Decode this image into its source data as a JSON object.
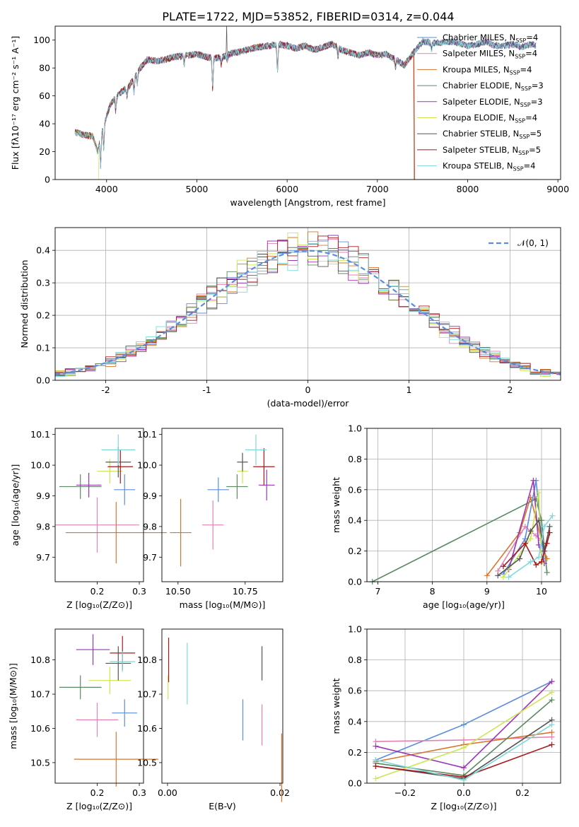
{
  "figure": {
    "title": "PLATE=1722, MJD=53852, FIBERID=0314, z=0.044"
  },
  "colors": {
    "chabrier_miles": "#5b8ddb",
    "salpeter_miles": "#e481b4",
    "kroupa_miles": "#d9752b",
    "chabrier_elodie": "#5a8a62",
    "salpeter_elodie": "#9b35b3",
    "kroupa_elodie": "#cde651",
    "chabrier_stelib": "#555555",
    "salpeter_stelib": "#a8181b",
    "kroupa_stelib": "#7fd8dc",
    "normal": "#5b8ddb",
    "grid": "#b0b0b0"
  },
  "chart_data": [
    {
      "id": "spectrum",
      "type": "line",
      "xlabel": "wavelength [Angstrom, rest frame]",
      "ylabel": "Flux [fλ10⁻¹⁷ erg cm⁻² s⁻¹ A⁻¹]",
      "xlim": [
        3430,
        9030
      ],
      "ylim": [
        0,
        110
      ],
      "xticks": [
        4000,
        5000,
        6000,
        7000,
        8000,
        9000
      ],
      "yticks": [
        0,
        20,
        40,
        60,
        80,
        100
      ],
      "grid": false,
      "legend": "top-right",
      "legend_entries": [
        {
          "base": "Chabrier MILES, N",
          "sub": "SSP",
          "tail": "=4"
        },
        {
          "base": "Salpeter MILES, N",
          "sub": "SSP",
          "tail": "=4"
        },
        {
          "base": "Kroupa MILES, N",
          "sub": "SSP",
          "tail": "=4"
        },
        {
          "base": "Chabrier ELODIE, N",
          "sub": "SSP",
          "tail": "=3"
        },
        {
          "base": "Salpeter ELODIE, N",
          "sub": "SSP",
          "tail": "=3"
        },
        {
          "base": "Kroupa ELODIE, N",
          "sub": "SSP",
          "tail": "=4"
        },
        {
          "base": "Chabrier STELIB, N",
          "sub": "SSP",
          "tail": "=5"
        },
        {
          "base": "Salpeter STELIB, N",
          "sub": "SSP",
          "tail": "=5"
        },
        {
          "base": "Kroupa STELIB, N",
          "sub": "SSP",
          "tail": "=4"
        }
      ],
      "continuum": [
        [
          3650,
          34
        ],
        [
          3750,
          32
        ],
        [
          3850,
          31
        ],
        [
          3900,
          20
        ],
        [
          3930,
          30
        ],
        [
          3980,
          42
        ],
        [
          4050,
          55
        ],
        [
          4150,
          62
        ],
        [
          4250,
          67
        ],
        [
          4350,
          78
        ],
        [
          4450,
          86
        ],
        [
          4550,
          85
        ],
        [
          4650,
          86
        ],
        [
          4750,
          88
        ],
        [
          4900,
          89
        ],
        [
          5000,
          90
        ],
        [
          5100,
          88
        ],
        [
          5200,
          87
        ],
        [
          5300,
          88
        ],
        [
          5400,
          91
        ],
        [
          5500,
          92
        ],
        [
          5600,
          94
        ],
        [
          5700,
          95
        ],
        [
          5800,
          96
        ],
        [
          5900,
          97
        ],
        [
          6000,
          96
        ],
        [
          6100,
          94
        ],
        [
          6200,
          96
        ],
        [
          6300,
          93
        ],
        [
          6400,
          95
        ],
        [
          6500,
          97
        ],
        [
          6600,
          93
        ],
        [
          6700,
          91
        ],
        [
          6800,
          89
        ],
        [
          6900,
          91
        ],
        [
          7000,
          89
        ],
        [
          7100,
          90
        ],
        [
          7200,
          86
        ],
        [
          7300,
          82
        ],
        [
          7400,
          91
        ],
        [
          7500,
          99
        ],
        [
          7600,
          98
        ],
        [
          7700,
          98
        ],
        [
          7800,
          99
        ],
        [
          7900,
          98
        ],
        [
          8000,
          96
        ],
        [
          8100,
          97
        ],
        [
          8200,
          99
        ],
        [
          8300,
          96
        ],
        [
          8400,
          96
        ],
        [
          8500,
          97
        ],
        [
          8600,
          95
        ],
        [
          8700,
          97
        ],
        [
          8760,
          96
        ]
      ],
      "absorption_features": [
        [
          3934,
          22
        ],
        [
          3969,
          18
        ],
        [
          4102,
          10
        ],
        [
          4227,
          6
        ],
        [
          4304,
          10
        ],
        [
          4340,
          8
        ],
        [
          4861,
          6
        ],
        [
          5175,
          22
        ],
        [
          5270,
          5
        ],
        [
          5335,
          4
        ],
        [
          5893,
          20
        ],
        [
          6563,
          7
        ],
        [
          7200,
          6
        ],
        [
          7600,
          5
        ]
      ],
      "model_ends": [
        {
          "series": "kroupa_elodie",
          "end_x": 3910
        },
        {
          "series": "kroupa_elodie",
          "gap_x": 6790
        },
        {
          "series": "kroupa_miles",
          "end_x": 7400
        },
        {
          "series": "salpeter_stelib",
          "end_x": 7410
        }
      ]
    },
    {
      "id": "residuals",
      "type": "histogram",
      "xlabel": "(data-model)/error",
      "ylabel": "Normed distribution",
      "xlim": [
        -2.5,
        2.5
      ],
      "ylim": [
        0,
        0.47
      ],
      "xticks": [
        -2,
        -1,
        0,
        1,
        2
      ],
      "yticks": [
        0.0,
        0.1,
        0.2,
        0.3,
        0.4
      ],
      "grid": true,
      "legend": "top-right",
      "legend_label": "𝒩(0, 1)",
      "bin_width": 0.1,
      "normal": {
        "mean": 0,
        "sigma": 1
      }
    },
    {
      "id": "age_vs_Z",
      "type": "errorbar",
      "xlabel": "Z [log₁₀(Z/Z⊙)]",
      "ylabel": "age  [log₁₀(age/yr)]",
      "xlim": [
        0.1,
        0.31
      ],
      "ylim": [
        9.62,
        10.12
      ],
      "xticks": [
        0.2,
        0.3
      ],
      "yticks": [
        9.7,
        9.8,
        9.9,
        10.0,
        10.1
      ],
      "grid": false,
      "points": [
        {
          "series": "chabrier_miles",
          "x": 0.265,
          "y": 9.92,
          "xerr": 0.025,
          "yerr": 0.05
        },
        {
          "series": "salpeter_miles",
          "x": 0.2,
          "y": 9.805,
          "xerr": 0.1,
          "yerr": 0.09
        },
        {
          "series": "kroupa_miles",
          "x": 0.245,
          "y": 9.78,
          "xerr": 0.12,
          "yerr": 0.1
        },
        {
          "series": "chabrier_elodie",
          "x": 0.16,
          "y": 9.93,
          "xerr": 0.05,
          "yerr": 0.04
        },
        {
          "series": "salpeter_elodie",
          "x": 0.18,
          "y": 9.935,
          "xerr": 0.03,
          "yerr": 0.04
        },
        {
          "series": "kroupa_elodie",
          "x": 0.23,
          "y": 9.98,
          "xerr": 0.03,
          "yerr": 0.04
        },
        {
          "series": "chabrier_stelib",
          "x": 0.25,
          "y": 10.01,
          "xerr": 0.03,
          "yerr": 0.05
        },
        {
          "series": "salpeter_stelib",
          "x": 0.255,
          "y": 9.995,
          "xerr": 0.03,
          "yerr": 0.055
        },
        {
          "series": "kroupa_stelib",
          "x": 0.25,
          "y": 10.05,
          "xerr": 0.04,
          "yerr": 0.05
        }
      ]
    },
    {
      "id": "age_vs_mass",
      "type": "errorbar",
      "xlabel": "mass [log₁₀(M/M⊙)]",
      "ylabel": "",
      "xlim": [
        10.44,
        10.89
      ],
      "ylim": [
        9.62,
        10.12
      ],
      "xticks": [
        10.5,
        10.75
      ],
      "xtick_labels": [
        "10.50",
        "10.75"
      ],
      "yticks": [
        9.7,
        9.8,
        9.9,
        10.0,
        10.1
      ],
      "grid": false,
      "points": [
        {
          "series": "chabrier_miles",
          "x": 10.65,
          "y": 9.92,
          "xerr": 0.04,
          "yerr": 0.04
        },
        {
          "series": "salpeter_miles",
          "x": 10.63,
          "y": 9.805,
          "xerr": 0.04,
          "yerr": 0.08
        },
        {
          "series": "kroupa_miles",
          "x": 10.51,
          "y": 9.78,
          "xerr": 0.04,
          "yerr": 0.11
        },
        {
          "series": "chabrier_elodie",
          "x": 10.72,
          "y": 9.93,
          "xerr": 0.04,
          "yerr": 0.04
        },
        {
          "series": "salpeter_elodie",
          "x": 10.83,
          "y": 9.935,
          "xerr": 0.03,
          "yerr": 0.05
        },
        {
          "series": "kroupa_elodie",
          "x": 10.74,
          "y": 9.98,
          "xerr": 0.02,
          "yerr": 0.04
        },
        {
          "series": "chabrier_stelib",
          "x": 10.74,
          "y": 10.01,
          "xerr": 0.02,
          "yerr": 0.03
        },
        {
          "series": "salpeter_stelib",
          "x": 10.82,
          "y": 9.995,
          "xerr": 0.04,
          "yerr": 0.06
        },
        {
          "series": "kroupa_stelib",
          "x": 10.79,
          "y": 10.05,
          "xerr": 0.04,
          "yerr": 0.05
        }
      ]
    },
    {
      "id": "mass_weight_vs_age",
      "type": "line",
      "xlabel": "age  [log₁₀(age/yr)]",
      "ylabel": "mass weight",
      "xlim": [
        6.8,
        10.35
      ],
      "ylim": [
        0,
        1
      ],
      "xticks": [
        7,
        8,
        9,
        10
      ],
      "yticks": [
        0.0,
        0.2,
        0.4,
        0.6,
        0.8,
        1.0
      ],
      "grid": true,
      "series": [
        {
          "series": "chabrier_elodie",
          "x": [
            6.9,
            9.9,
            10.0,
            10.1
          ],
          "y": [
            0.0,
            0.54,
            0.4,
            0.06
          ]
        },
        {
          "series": "kroupa_miles",
          "x": [
            9.0,
            9.6,
            9.8,
            10.05,
            10.1
          ],
          "y": [
            0.04,
            0.32,
            0.55,
            0.2,
            0.15
          ]
        },
        {
          "series": "salpeter_miles",
          "x": [
            9.2,
            9.7,
            9.9,
            10.0
          ],
          "y": [
            0.07,
            0.36,
            0.3,
            0.27
          ]
        },
        {
          "series": "chabrier_miles",
          "x": [
            9.3,
            9.7,
            9.9,
            10.05
          ],
          "y": [
            0.05,
            0.28,
            0.66,
            0.12
          ]
        },
        {
          "series": "salpeter_elodie",
          "x": [
            9.4,
            9.85,
            9.95,
            10.05
          ],
          "y": [
            0.08,
            0.66,
            0.24,
            0.12
          ]
        },
        {
          "series": "kroupa_elodie",
          "x": [
            9.3,
            9.8,
            9.95,
            10.0
          ],
          "y": [
            0.03,
            0.28,
            0.58,
            0.12
          ]
        },
        {
          "series": "chabrier_stelib",
          "x": [
            9.2,
            9.6,
            9.8,
            9.95,
            10.05,
            10.15
          ],
          "y": [
            0.04,
            0.15,
            0.33,
            0.4,
            0.2,
            0.36
          ]
        },
        {
          "series": "salpeter_stelib",
          "x": [
            9.3,
            9.7,
            9.9,
            10.0,
            10.1,
            10.15
          ],
          "y": [
            0.1,
            0.25,
            0.11,
            0.13,
            0.25,
            0.32
          ]
        },
        {
          "series": "kroupa_stelib",
          "x": [
            9.4,
            9.8,
            9.95,
            10.05,
            10.2
          ],
          "y": [
            0.03,
            0.13,
            0.16,
            0.36,
            0.43
          ]
        }
      ]
    },
    {
      "id": "mass_vs_Z",
      "type": "errorbar",
      "xlabel": "Z [log₁₀(Z/Z⊙)]",
      "ylabel": "mass [log₁₀(M/M⊙)]",
      "xlim": [
        0.1,
        0.31
      ],
      "ylim": [
        10.44,
        10.89
      ],
      "xticks": [
        0.2,
        0.3
      ],
      "yticks": [
        10.5,
        10.6,
        10.7,
        10.8
      ],
      "grid": false,
      "points": [
        {
          "series": "chabrier_miles",
          "x": 0.265,
          "y": 10.645,
          "xerr": 0.03,
          "yerr": 0.04
        },
        {
          "series": "salpeter_miles",
          "x": 0.2,
          "y": 10.625,
          "xerr": 0.05,
          "yerr": 0.05
        },
        {
          "series": "kroupa_miles",
          "x": 0.245,
          "y": 10.51,
          "xerr": 0.1,
          "yerr": 0.08
        },
        {
          "series": "chabrier_elodie",
          "x": 0.16,
          "y": 10.72,
          "xerr": 0.05,
          "yerr": 0.035
        },
        {
          "series": "salpeter_elodie",
          "x": 0.19,
          "y": 10.83,
          "xerr": 0.04,
          "yerr": 0.045
        },
        {
          "series": "kroupa_elodie",
          "x": 0.23,
          "y": 10.74,
          "xerr": 0.05,
          "yerr": 0.04
        },
        {
          "series": "chabrier_stelib",
          "x": 0.25,
          "y": 10.79,
          "xerr": 0.03,
          "yerr": 0.05
        },
        {
          "series": "salpeter_stelib",
          "x": 0.26,
          "y": 10.82,
          "xerr": 0.03,
          "yerr": 0.05
        },
        {
          "series": "kroupa_stelib",
          "x": 0.26,
          "y": 10.795,
          "xerr": 0.03,
          "yerr": 0.03
        }
      ]
    },
    {
      "id": "mass_vs_ebv",
      "type": "errorbar",
      "xlabel": "E(B-V)",
      "ylabel": "",
      "xlim": [
        -0.001,
        0.0205
      ],
      "ylim": [
        10.44,
        10.89
      ],
      "xticks": [
        0.0,
        0.02
      ],
      "xtick_labels": [
        "0.00",
        "0.02"
      ],
      "yticks": [
        10.5,
        10.6,
        10.7,
        10.8
      ],
      "grid": false,
      "points": [
        {
          "series": "chabrier_miles",
          "x": 0.0134,
          "y": 10.625,
          "xerr": 0,
          "yerr": 0.06
        },
        {
          "series": "salpeter_miles",
          "x": 0.0168,
          "y": 10.61,
          "xerr": 0,
          "yerr": 0.06
        },
        {
          "series": "kroupa_miles",
          "x": 0.0203,
          "y": 10.485,
          "xerr": 0,
          "yerr": 0.1
        },
        {
          "series": "kroupa_elodie",
          "x": 0.0001,
          "y": 10.72,
          "xerr": 0,
          "yerr": 0.035
        },
        {
          "series": "chabrier_stelib",
          "x": 0.0168,
          "y": 10.79,
          "xerr": 0,
          "yerr": 0.05
        },
        {
          "series": "salpeter_stelib",
          "x": 0.0002,
          "y": 10.8,
          "xerr": 0,
          "yerr": 0.065
        },
        {
          "series": "kroupa_stelib",
          "x": 0.0035,
          "y": 10.76,
          "xerr": 0,
          "yerr": 0.09
        }
      ]
    },
    {
      "id": "mass_weight_vs_Z",
      "type": "line",
      "xlabel": "Z [log₁₀(Z/Z⊙)]",
      "ylabel": "mass weight",
      "xlim": [
        -0.33,
        0.33
      ],
      "ylim": [
        0,
        1
      ],
      "xticks": [
        -0.2,
        0.0,
        0.2
      ],
      "xtick_labels": [
        "−0.2",
        "0.0",
        "0.2"
      ],
      "yticks": [
        0.0,
        0.2,
        0.4,
        0.6,
        0.8,
        1.0
      ],
      "grid": true,
      "series": [
        {
          "series": "chabrier_miles",
          "x": [
            -0.3,
            0.0,
            0.3
          ],
          "y": [
            0.15,
            0.38,
            0.66
          ]
        },
        {
          "series": "salpeter_miles",
          "x": [
            -0.3,
            0.0,
            0.3
          ],
          "y": [
            0.27,
            0.28,
            0.3
          ]
        },
        {
          "series": "kroupa_miles",
          "x": [
            -0.3,
            0.0,
            0.3
          ],
          "y": [
            0.14,
            0.25,
            0.33
          ]
        },
        {
          "series": "chabrier_elodie",
          "x": [
            -0.3,
            0.0,
            0.3
          ],
          "y": [
            0.13,
            0.05,
            0.54
          ]
        },
        {
          "series": "salpeter_elodie",
          "x": [
            -0.3,
            0.0,
            0.3
          ],
          "y": [
            0.24,
            0.1,
            0.66
          ]
        },
        {
          "series": "kroupa_elodie",
          "x": [
            -0.3,
            0.0,
            0.3
          ],
          "y": [
            0.03,
            0.23,
            0.59
          ]
        },
        {
          "series": "chabrier_stelib",
          "x": [
            -0.3,
            0.0,
            0.3
          ],
          "y": [
            0.11,
            0.03,
            0.41
          ]
        },
        {
          "series": "salpeter_stelib",
          "x": [
            -0.3,
            0.0,
            0.3
          ],
          "y": [
            0.11,
            0.04,
            0.25
          ]
        },
        {
          "series": "kroupa_stelib",
          "x": [
            -0.3,
            0.0,
            0.3
          ],
          "y": [
            0.15,
            0.02,
            0.38
          ]
        }
      ]
    }
  ]
}
